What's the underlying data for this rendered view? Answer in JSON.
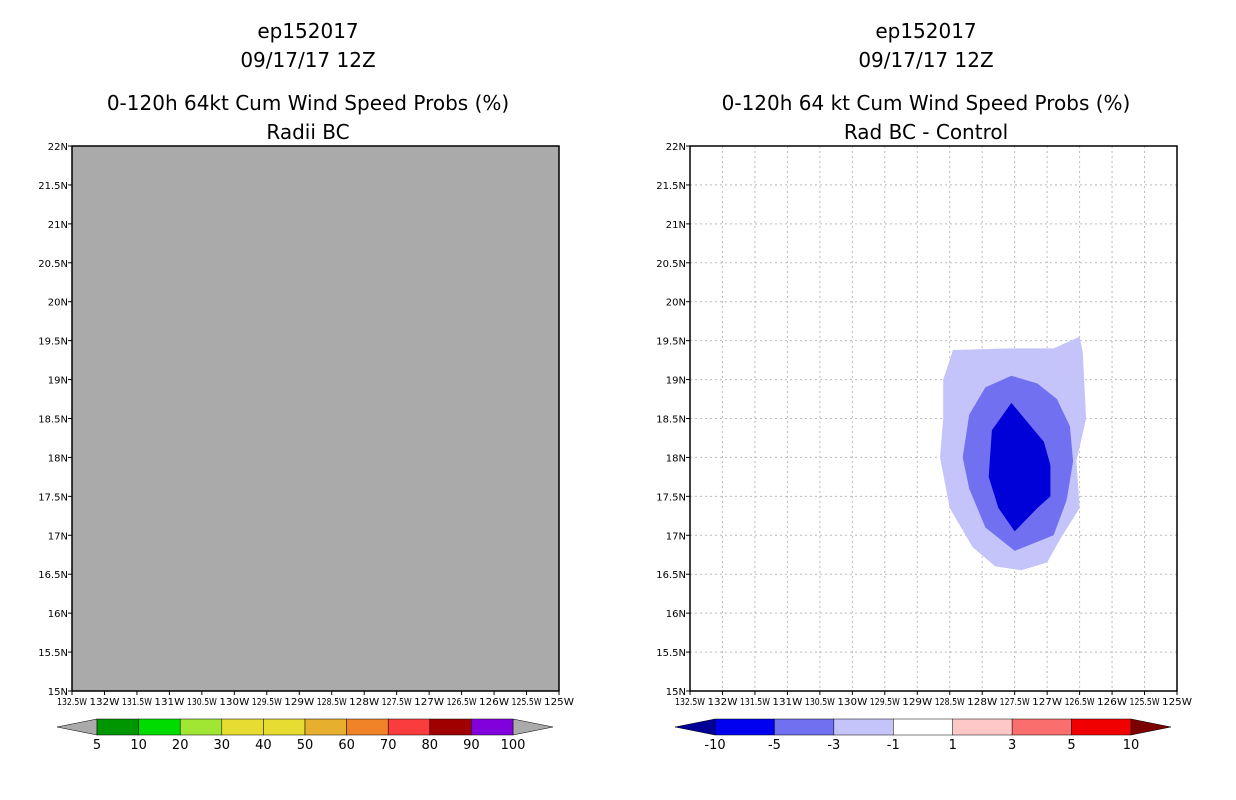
{
  "colors": {
    "missing_fill": "#aaaaaa",
    "grid": "#bbbbbb",
    "diff_m10": "#0000d8",
    "diff_m5": "#7070f0",
    "diff_m3": "#c4c4fa"
  },
  "chart_data": [
    {
      "type": "heatmap",
      "title_lines": [
        "ep152017",
        "09/17/17 12Z",
        "0-120h 64kt Cum Wind Speed Probs (%)",
        "Radii BC"
      ],
      "y_ticks": [
        "15N",
        "15.5N",
        "16N",
        "16.5N",
        "17N",
        "17.5N",
        "18N",
        "18.5N",
        "19N",
        "19.5N",
        "20N",
        "20.5N",
        "21N",
        "21.5N",
        "22N"
      ],
      "x_ticks": [
        "132.5W",
        "132W",
        "131.5W",
        "131W",
        "130.5W",
        "130W",
        "129.5W",
        "129W",
        "128.5W",
        "128W",
        "127.5W",
        "127W",
        "126.5W",
        "126W",
        "125.5W",
        "125W"
      ],
      "xlim": [
        -132.5,
        -125
      ],
      "ylim": [
        15,
        22
      ],
      "grid": false,
      "field": "undefined (no data)",
      "colorbar": {
        "labels": [
          "5",
          "10",
          "20",
          "30",
          "40",
          "50",
          "60",
          "70",
          "80",
          "90",
          "100"
        ],
        "colors": [
          "#009600",
          "#00dc00",
          "#a0e632",
          "#e6dc32",
          "#e6dc32",
          "#e6af2d",
          "#f08228",
          "#fa3c3c",
          "#a00000",
          "#8200dc"
        ],
        "end_low": "#aaaaaa",
        "end_high": "#aaaaaa"
      }
    },
    {
      "type": "heatmap",
      "title_lines": [
        "ep152017",
        "09/17/17 12Z",
        "0-120h 64 kt Cum Wind Speed Probs (%)",
        "Rad BC - Control"
      ],
      "y_ticks": [
        "15N",
        "15.5N",
        "16N",
        "16.5N",
        "17N",
        "17.5N",
        "18N",
        "18.5N",
        "19N",
        "19.5N",
        "20N",
        "20.5N",
        "21N",
        "21.5N",
        "22N"
      ],
      "x_ticks": [
        "132.5W",
        "132W",
        "131.5W",
        "131W",
        "130.5W",
        "130W",
        "129.5W",
        "129W",
        "128.5W",
        "128W",
        "127.5W",
        "127W",
        "126.5W",
        "126W",
        "125.5W",
        "125W"
      ],
      "xlim": [
        -132.5,
        -125
      ],
      "ylim": [
        15,
        22
      ],
      "grid": true,
      "contours": [
        {
          "level": "-3 to -1",
          "points": [
            [
              -128.6,
              19.0
            ],
            [
              -128.45,
              19.38
            ],
            [
              -127.55,
              19.4
            ],
            [
              -126.9,
              19.4
            ],
            [
              -126.5,
              19.55
            ],
            [
              -126.45,
              19.35
            ],
            [
              -126.4,
              18.5
            ],
            [
              -126.55,
              17.95
            ],
            [
              -126.5,
              17.35
            ],
            [
              -126.8,
              16.95
            ],
            [
              -127.0,
              16.65
            ],
            [
              -127.4,
              16.55
            ],
            [
              -127.8,
              16.6
            ],
            [
              -128.15,
              16.85
            ],
            [
              -128.5,
              17.35
            ],
            [
              -128.65,
              18.0
            ],
            [
              -128.6,
              18.5
            ]
          ]
        },
        {
          "level": "-5 to -3",
          "points": [
            [
              -128.2,
              18.55
            ],
            [
              -127.95,
              18.9
            ],
            [
              -127.55,
              19.05
            ],
            [
              -127.15,
              18.95
            ],
            [
              -126.85,
              18.75
            ],
            [
              -126.65,
              18.4
            ],
            [
              -126.6,
              17.95
            ],
            [
              -126.7,
              17.45
            ],
            [
              -126.9,
              17.0
            ],
            [
              -127.5,
              16.8
            ],
            [
              -127.95,
              17.1
            ],
            [
              -128.2,
              17.6
            ],
            [
              -128.3,
              18.0
            ]
          ]
        },
        {
          "level": "-10 to -5",
          "points": [
            [
              -127.85,
              18.35
            ],
            [
              -127.55,
              18.7
            ],
            [
              -127.35,
              18.5
            ],
            [
              -127.05,
              18.2
            ],
            [
              -126.95,
              17.9
            ],
            [
              -126.95,
              17.5
            ],
            [
              -127.15,
              17.35
            ],
            [
              -127.5,
              17.05
            ],
            [
              -127.75,
              17.35
            ],
            [
              -127.9,
              17.75
            ]
          ]
        }
      ],
      "colorbar": {
        "labels": [
          "-10",
          "-5",
          "-3",
          "-1",
          "1",
          "3",
          "5",
          "10"
        ],
        "colors": [
          "#0000f0",
          "#7070f0",
          "#c4c4fa",
          "#ffffff",
          "#ffc8c8",
          "#fa6e6e",
          "#f00000"
        ],
        "end_low": "#000096",
        "end_high": "#7d0000"
      }
    }
  ]
}
